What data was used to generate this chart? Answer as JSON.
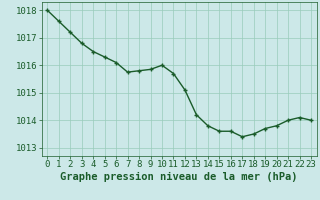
{
  "x": [
    0,
    1,
    2,
    3,
    4,
    5,
    6,
    7,
    8,
    9,
    10,
    11,
    12,
    13,
    14,
    15,
    16,
    17,
    18,
    19,
    20,
    21,
    22,
    23
  ],
  "y": [
    1018.0,
    1017.6,
    1017.2,
    1016.8,
    1016.5,
    1016.3,
    1016.1,
    1015.75,
    1015.8,
    1015.85,
    1016.0,
    1015.7,
    1015.1,
    1014.2,
    1013.8,
    1013.6,
    1013.6,
    1013.4,
    1013.5,
    1013.7,
    1013.8,
    1014.0,
    1014.1,
    1014.0
  ],
  "ylim": [
    1012.7,
    1018.3
  ],
  "yticks": [
    1013,
    1014,
    1015,
    1016,
    1017,
    1018
  ],
  "xticks": [
    0,
    1,
    2,
    3,
    4,
    5,
    6,
    7,
    8,
    9,
    10,
    11,
    12,
    13,
    14,
    15,
    16,
    17,
    18,
    19,
    20,
    21,
    22,
    23
  ],
  "xlabel": "Graphe pression niveau de la mer (hPa)",
  "line_color": "#1a5c2a",
  "marker": "+",
  "marker_size": 3.5,
  "bg_color": "#cce8e8",
  "grid_color": "#99ccbb",
  "tick_color": "#1a5c2a",
  "label_color": "#1a5c2a",
  "xlabel_fontsize": 7.5,
  "tick_fontsize": 6.5,
  "line_width": 1.0
}
